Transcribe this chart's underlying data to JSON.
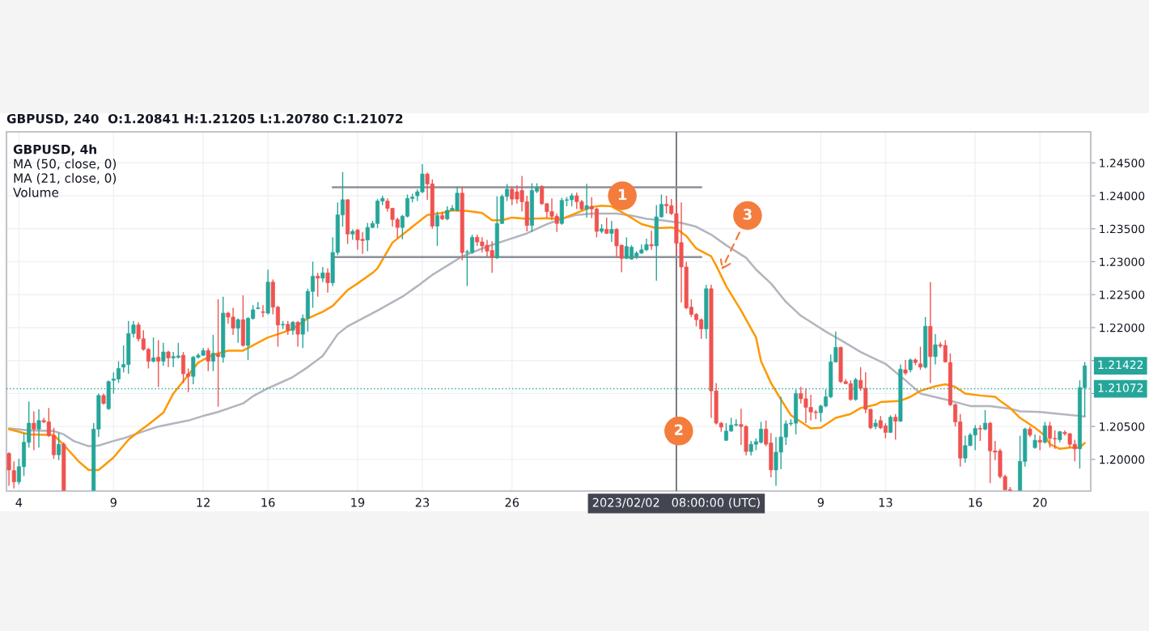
{
  "chart_data": {
    "type": "candlestick",
    "title": "GBPUSD, 240  O:1.20841 H:1.21205 L:1.20780 C:1.21072",
    "annotations": [
      "GBPUSD, 4h",
      "MA (50, close, 0)",
      "MA (21, close, 0)",
      "Volume",
      "1",
      "2",
      "3",
      "1.21422"
    ],
    "categories": [
      null,
      null,
      "4",
      null,
      null,
      null,
      null,
      null,
      null,
      null,
      null,
      null,
      null,
      null,
      null,
      null,
      null,
      null,
      null,
      null,
      null,
      "9",
      null,
      null,
      null,
      null,
      null,
      null,
      null,
      null,
      null,
      null,
      null,
      null,
      null,
      null,
      null,
      null,
      null,
      "12",
      null,
      null,
      null,
      null,
      null,
      null,
      null,
      null,
      null,
      null,
      null,
      null,
      "16",
      null,
      null,
      null,
      null,
      null,
      null,
      null,
      null,
      null,
      null,
      null,
      null,
      null,
      null,
      null,
      null,
      null,
      "19",
      null,
      null,
      null,
      null,
      null,
      null,
      null,
      null,
      null,
      null,
      null,
      null,
      "23",
      null,
      null,
      null,
      null,
      null,
      null,
      null,
      null,
      null,
      null,
      null,
      null,
      null,
      null,
      null,
      null,
      null,
      "26",
      null,
      null,
      null,
      null,
      null,
      null,
      null,
      null,
      null,
      null,
      null,
      null,
      null,
      null,
      null,
      null,
      null,
      null,
      null,
      null,
      null,
      null,
      null,
      null,
      null,
      null,
      null,
      null,
      null,
      null,
      null,
      null,
      "2023/02/02   08:00:00 (UTC)",
      null,
      null,
      null,
      null,
      null,
      null,
      null,
      null,
      null,
      null,
      null,
      null,
      null,
      null,
      null,
      null,
      null,
      null,
      null,
      null,
      null,
      null,
      null,
      null,
      null,
      null,
      null,
      null,
      "9",
      null,
      null,
      null,
      null,
      null,
      null,
      null,
      null,
      null,
      null,
      null,
      null,
      "13",
      null,
      null,
      null,
      null,
      null,
      null,
      null,
      null,
      null,
      null,
      null,
      null,
      null,
      null,
      null,
      null,
      null,
      "16",
      null,
      null,
      null,
      null,
      null,
      null,
      null,
      null,
      null,
      null,
      null,
      null,
      "20",
      null,
      null,
      null,
      null,
      null,
      null,
      null,
      null,
      null
    ],
    "ohlc": [
      [
        1.2009,
        1.2011,
        1.196,
        1.1984
      ],
      [
        1.1983,
        1.1997,
        1.1956,
        1.1966
      ],
      [
        1.1966,
        1.2001,
        1.1962,
        1.1989
      ],
      [
        1.1989,
        1.204,
        1.1975,
        1.2026
      ],
      [
        1.2026,
        1.2088,
        1.2018,
        1.2055
      ],
      [
        1.2055,
        1.2073,
        1.2014,
        1.2046
      ],
      [
        1.2046,
        1.2076,
        1.2018,
        1.2059
      ],
      [
        1.2059,
        1.2063,
        1.2055,
        1.2057
      ],
      [
        1.2057,
        1.2078,
        1.2034,
        1.2036
      ],
      [
        1.2036,
        1.2048,
        1.2001,
        1.2007
      ],
      [
        1.2007,
        1.204,
        1.1999,
        1.2023
      ],
      [
        1.2023,
        1.2026,
        1.1953,
        1.1953
      ],
      null,
      null,
      null,
      null,
      null,
      [
        1.1953,
        1.2055,
        1.1953,
        1.2046
      ],
      [
        1.2046,
        1.21,
        1.2034,
        1.2097
      ],
      [
        1.2097,
        1.21,
        1.2083,
        1.2085
      ],
      [
        1.2077,
        1.212,
        1.2075,
        1.2118
      ],
      [
        1.212,
        1.2132,
        1.21,
        1.2122
      ],
      [
        1.2122,
        1.2149,
        1.2116,
        1.2138
      ],
      [
        1.214,
        1.2173,
        1.2132,
        1.2144
      ],
      [
        1.2144,
        1.221,
        1.213,
        1.2191
      ],
      [
        1.2191,
        1.221,
        1.2185,
        1.2204
      ],
      [
        1.2204,
        1.2208,
        1.2179,
        1.2183
      ],
      [
        1.2183,
        1.2196,
        1.2165,
        1.2167
      ],
      [
        1.2167,
        1.2169,
        1.2138,
        1.2149
      ],
      [
        1.2149,
        1.2185,
        1.2147,
        1.2154
      ],
      [
        1.2155,
        1.2181,
        1.211,
        1.2149
      ],
      [
        1.2149,
        1.2177,
        1.2142,
        1.2163
      ],
      [
        1.2163,
        1.2165,
        1.214,
        1.2154
      ],
      [
        1.2154,
        1.2163,
        1.214,
        1.2156
      ],
      [
        1.2155,
        1.2177,
        1.2153,
        1.2157
      ],
      [
        1.2158,
        1.2163,
        1.2116,
        1.213
      ],
      [
        1.213,
        1.2138,
        1.2102,
        1.2126
      ],
      [
        1.2126,
        1.2157,
        1.2114,
        1.2155
      ],
      [
        1.2155,
        1.2161,
        1.2153,
        1.2158
      ],
      [
        1.2158,
        1.2169,
        1.2157,
        1.2165
      ],
      [
        1.2165,
        1.2169,
        1.2134,
        1.2149
      ],
      [
        1.2149,
        1.2189,
        1.2134,
        1.2161
      ],
      [
        1.216,
        1.2243,
        1.208,
        1.2156
      ],
      [
        1.2155,
        1.2247,
        1.2147,
        1.2222
      ],
      [
        1.2222,
        1.2224,
        1.2206,
        1.2216
      ],
      [
        1.2216,
        1.223,
        1.2189,
        1.2199
      ],
      [
        1.2199,
        1.2214,
        1.2177,
        1.2212
      ],
      [
        1.2212,
        1.2249,
        1.2171,
        1.2173
      ],
      [
        1.2173,
        1.2216,
        1.2151,
        1.2214
      ],
      [
        1.2214,
        1.2234,
        1.2212,
        1.2227
      ],
      [
        1.2229,
        1.2239,
        1.2228,
        1.223
      ],
      [
        1.2224,
        1.2234,
        1.2216,
        1.2223
      ],
      [
        1.2222,
        1.2288,
        1.222,
        1.2269
      ],
      [
        1.2269,
        1.2273,
        1.222,
        1.2231
      ],
      [
        1.2231,
        1.2233,
        1.2171,
        1.2204
      ],
      [
        1.2204,
        1.221,
        1.2198,
        1.2205
      ],
      [
        1.2205,
        1.221,
        1.2189,
        1.2196
      ],
      [
        1.2196,
        1.221,
        1.2189,
        1.2208
      ],
      [
        1.2208,
        1.221,
        1.2171,
        1.219
      ],
      [
        1.219,
        1.222,
        1.2169,
        1.2214
      ],
      [
        1.2214,
        1.2259,
        1.2194,
        1.2255
      ],
      [
        1.2255,
        1.23,
        1.223,
        1.2278
      ],
      [
        1.2278,
        1.2283,
        1.2247,
        1.2275
      ],
      [
        1.2275,
        1.2292,
        1.2269,
        1.2283
      ],
      [
        1.2283,
        1.229,
        1.2253,
        1.2268
      ],
      [
        1.2268,
        1.2337,
        1.2263,
        1.2314
      ],
      [
        1.2314,
        1.239,
        1.231,
        1.2371
      ],
      [
        1.2371,
        1.2436,
        1.2353,
        1.2394
      ],
      [
        1.2394,
        1.2395,
        1.2327,
        1.2342
      ],
      [
        1.2342,
        1.2349,
        1.2333,
        1.2346
      ],
      [
        1.2348,
        1.235,
        1.2318,
        1.2333
      ],
      [
        1.2334,
        1.2345,
        1.2312,
        1.2332
      ],
      [
        1.2333,
        1.2359,
        1.2316,
        1.2352
      ],
      [
        1.2352,
        1.2362,
        1.2351,
        1.2358
      ],
      [
        1.2358,
        1.2395,
        1.2351,
        1.2392
      ],
      [
        1.2392,
        1.24,
        1.2386,
        1.2396
      ],
      [
        1.2392,
        1.2396,
        1.2376,
        1.2381
      ],
      [
        1.2381,
        1.2382,
        1.2353,
        1.2364
      ],
      [
        1.2364,
        1.2367,
        1.2336,
        1.2352
      ],
      [
        1.2352,
        1.2371,
        1.2334,
        1.2369
      ],
      [
        1.2369,
        1.2402,
        1.2367,
        1.2396
      ],
      [
        1.2396,
        1.2403,
        1.239,
        1.2398
      ],
      [
        1.24,
        1.241,
        1.2392,
        1.2406
      ],
      [
        1.2406,
        1.2448,
        1.2404,
        1.2433
      ],
      [
        1.2433,
        1.2435,
        1.2394,
        1.2418
      ],
      [
        1.2418,
        1.2425,
        1.235,
        1.2354
      ],
      [
        1.2354,
        1.2376,
        1.2324,
        1.237
      ],
      [
        1.237,
        1.2376,
        1.2363,
        1.2365
      ],
      [
        1.2365,
        1.2384,
        1.2363,
        1.2378
      ],
      [
        1.2378,
        1.2386,
        1.2377,
        1.2381
      ],
      [
        1.2378,
        1.2414,
        1.2376,
        1.2404
      ],
      [
        1.2404,
        1.2414,
        1.2302,
        1.2314
      ],
      [
        1.2314,
        1.2318,
        1.2263,
        1.2315
      ],
      [
        1.2314,
        1.2341,
        1.2312,
        1.2337
      ],
      [
        1.2337,
        1.2341,
        1.2324,
        1.233
      ],
      [
        1.233,
        1.2337,
        1.2314,
        1.2324
      ],
      [
        1.2325,
        1.2333,
        1.2308,
        1.2316
      ],
      [
        1.2317,
        1.2331,
        1.2283,
        1.2306
      ],
      [
        1.2306,
        1.2399,
        1.2304,
        1.2358
      ],
      [
        1.2358,
        1.2402,
        1.2357,
        1.2399
      ],
      [
        1.2399,
        1.2418,
        1.2392,
        1.241
      ],
      [
        1.241,
        1.2414,
        1.2386,
        1.2395
      ],
      [
        1.2406,
        1.2416,
        1.2388,
        1.2395
      ],
      [
        1.2408,
        1.243,
        1.2376,
        1.2391
      ],
      [
        1.2391,
        1.24,
        1.2346,
        1.2355
      ],
      [
        1.2355,
        1.2419,
        1.2345,
        1.2408
      ],
      [
        1.2407,
        1.2419,
        1.2404,
        1.2413
      ],
      [
        1.2414,
        1.2416,
        1.2386,
        1.2388
      ],
      [
        1.2388,
        1.2389,
        1.2367,
        1.2376
      ],
      [
        1.2376,
        1.2396,
        1.2363,
        1.2369
      ],
      [
        1.2369,
        1.2373,
        1.2345,
        1.2358
      ],
      [
        1.2358,
        1.2397,
        1.2356,
        1.2393
      ],
      [
        1.2393,
        1.2398,
        1.2384,
        1.2394
      ],
      [
        1.2394,
        1.2404,
        1.2384,
        1.24
      ],
      [
        1.24,
        1.2405,
        1.238,
        1.2391
      ],
      [
        1.2391,
        1.2394,
        1.2378,
        1.238
      ],
      [
        1.238,
        1.2418,
        1.2367,
        1.2385
      ],
      [
        1.2384,
        1.2398,
        1.2366,
        1.238
      ],
      [
        1.238,
        1.2382,
        1.2337,
        1.2346
      ],
      [
        1.2346,
        1.2357,
        1.2343,
        1.235
      ],
      [
        1.2349,
        1.2367,
        1.2342,
        1.2343
      ],
      [
        1.2343,
        1.2362,
        1.233,
        1.2349
      ],
      [
        1.2349,
        1.2351,
        1.2306,
        1.2324
      ],
      [
        1.2325,
        1.2326,
        1.2284,
        1.2305
      ],
      [
        1.2305,
        1.2337,
        1.2304,
        1.2323
      ],
      [
        1.2304,
        1.2325,
        1.2303,
        1.2322
      ],
      [
        1.2308,
        1.2316,
        1.2304,
        1.2313
      ],
      [
        1.2313,
        1.2326,
        1.2312,
        1.2318
      ],
      [
        1.2318,
        1.2335,
        1.2316,
        1.2326
      ],
      [
        1.2326,
        1.2347,
        1.2318,
        1.2324
      ],
      [
        1.2324,
        1.2386,
        1.2271,
        1.2368
      ],
      [
        1.2368,
        1.2402,
        1.2367,
        1.2387
      ],
      [
        1.2387,
        1.24,
        1.2373,
        1.2385
      ],
      [
        1.2385,
        1.2395,
        1.2371,
        1.2373
      ],
      [
        1.2373,
        1.2393,
        1.231,
        1.2328
      ],
      [
        1.2329,
        1.239,
        1.2238,
        1.2292
      ],
      [
        1.2292,
        1.23,
        1.2228,
        1.223
      ],
      [
        1.2231,
        1.2243,
        1.2216,
        1.222
      ],
      [
        1.222,
        1.2222,
        1.2202,
        1.2212
      ],
      [
        1.2212,
        1.2214,
        1.2183,
        1.2198
      ],
      [
        1.2198,
        1.2265,
        1.2183,
        1.2259
      ],
      [
        1.2259,
        1.2265,
        1.2063,
        1.2104
      ],
      [
        1.2104,
        1.2116,
        1.2053,
        1.2055
      ],
      [
        1.2055,
        1.2057,
        1.2042,
        1.2049
      ],
      [
        1.2029,
        1.2055,
        1.2028,
        1.2043
      ],
      [
        1.2043,
        1.2063,
        1.2042,
        1.2052
      ],
      [
        1.2052,
        1.2061,
        1.205,
        1.2053
      ],
      [
        1.2053,
        1.2077,
        1.2022,
        1.205
      ],
      [
        1.205,
        1.2052,
        1.2006,
        1.2012
      ],
      [
        1.2012,
        1.2028,
        1.2006,
        1.2023
      ],
      [
        1.2023,
        1.2032,
        1.2014,
        1.2027
      ],
      [
        1.2026,
        1.2057,
        1.2024,
        1.2046
      ],
      [
        1.2046,
        1.2059,
        1.202,
        1.2023
      ],
      [
        1.2025,
        1.204,
        1.1973,
        1.1984
      ],
      [
        1.1984,
        1.2034,
        1.196,
        1.2011
      ],
      [
        1.2011,
        1.2095,
        1.1985,
        1.2034
      ],
      [
        1.2034,
        1.2059,
        1.2022,
        1.2054
      ],
      [
        1.2054,
        1.2061,
        1.2051,
        1.2055
      ],
      [
        1.2055,
        1.2106,
        1.2038,
        1.21
      ],
      [
        1.21,
        1.211,
        1.2085,
        1.2092
      ],
      [
        1.2092,
        1.2108,
        1.2055,
        1.2079
      ],
      [
        1.2079,
        1.2098,
        1.2059,
        1.2072
      ],
      [
        1.2072,
        1.2075,
        1.2061,
        1.2071
      ],
      [
        1.2071,
        1.2083,
        1.2057,
        1.2081
      ],
      [
        1.2081,
        1.2106,
        1.2079,
        1.2095
      ],
      [
        1.2095,
        1.2159,
        1.2093,
        1.2148
      ],
      [
        1.2148,
        1.2194,
        1.2147,
        1.217
      ],
      [
        1.217,
        1.2171,
        1.2116,
        1.2118
      ],
      [
        1.2118,
        1.2122,
        1.2114,
        1.2115
      ],
      [
        1.2115,
        1.212,
        1.2089,
        1.2091
      ],
      [
        1.2091,
        1.2124,
        1.2089,
        1.2121
      ],
      [
        1.212,
        1.214,
        1.2104,
        1.2108
      ],
      [
        1.2108,
        1.2132,
        1.207,
        1.2076
      ],
      [
        1.2076,
        1.2077,
        1.2046,
        1.2048
      ],
      [
        1.205,
        1.2061,
        1.2046,
        1.2055
      ],
      [
        1.2059,
        1.2066,
        1.2046,
        1.2048
      ],
      [
        1.2051,
        1.2055,
        1.2032,
        1.2041
      ],
      [
        1.2041,
        1.2067,
        1.204,
        1.2064
      ],
      [
        1.2064,
        1.2069,
        1.203,
        1.2058
      ],
      [
        1.2058,
        1.2144,
        1.2057,
        1.2137
      ],
      [
        1.2136,
        1.2151,
        1.2128,
        1.2131
      ],
      [
        1.2136,
        1.2153,
        1.2132,
        1.2151
      ],
      [
        1.2151,
        1.2153,
        1.2143,
        1.2147
      ],
      [
        1.2145,
        1.2171,
        1.2136,
        1.214
      ],
      [
        1.214,
        1.2216,
        1.2138,
        1.2202
      ],
      [
        1.2202,
        1.2269,
        1.2116,
        1.2156
      ],
      [
        1.2156,
        1.219,
        1.2144,
        1.2174
      ],
      [
        1.2174,
        1.2178,
        1.2169,
        1.2172
      ],
      [
        1.2173,
        1.2181,
        1.2147,
        1.2148
      ],
      [
        1.2147,
        1.2161,
        1.2081,
        1.2083
      ],
      [
        1.2083,
        1.2085,
        1.205,
        1.2057
      ],
      [
        1.2057,
        1.2069,
        1.1989,
        1.2002
      ],
      [
        1.2002,
        1.2036,
        1.1995,
        1.2021
      ],
      [
        1.2021,
        1.204,
        1.202,
        1.2037
      ],
      [
        1.2037,
        1.2052,
        1.2014,
        1.2047
      ],
      [
        1.2047,
        1.2052,
        1.2028,
        1.2046
      ],
      [
        1.2046,
        1.2075,
        1.2044,
        1.2055
      ],
      [
        1.2055,
        1.2057,
        1.1964,
        1.2013
      ],
      [
        1.2013,
        1.2028,
        1.1999,
        1.2011
      ],
      [
        1.2013,
        1.2016,
        1.1971,
        1.1974
      ],
      [
        1.1974,
        1.1977,
        1.1953,
        1.1954
      ],
      [
        1.1954,
        1.1958,
        1.1953,
        1.1953
      ],
      null,
      [
        1.1953,
        1.2036,
        1.1953,
        1.1997
      ],
      [
        1.1997,
        1.2048,
        1.1989,
        1.2046
      ],
      [
        1.2046,
        1.205,
        1.2034,
        1.2037
      ],
      [
        1.2018,
        1.2038,
        1.2016,
        1.2029
      ],
      [
        1.2029,
        1.2036,
        1.2014,
        1.2026
      ],
      [
        1.2026,
        1.2057,
        1.2024,
        1.2051
      ],
      [
        1.2051,
        1.2057,
        1.2018,
        1.2032
      ],
      [
        1.2032,
        1.2044,
        1.2016,
        1.2031
      ],
      [
        1.203,
        1.2043,
        1.2026,
        1.2042
      ],
      [
        1.2041,
        1.2044,
        1.2036,
        1.2039
      ],
      [
        1.2039,
        1.204,
        1.2018,
        1.2023
      ],
      [
        1.2023,
        1.203,
        1.1997,
        1.2016
      ],
      [
        1.2016,
        1.212,
        1.1986,
        1.2109
      ],
      [
        1.2109,
        1.2148,
        1.2065,
        1.2142
      ]
    ],
    "colors": [
      "#ef5350",
      "#ef5350",
      "#26a69a",
      "#26a69a",
      "#26a69a",
      "#ef5350",
      "#26a69a",
      "#ef5350",
      "#ef5350",
      "#ef5350",
      "#26a69a",
      "#ef5350",
      null,
      null,
      null,
      null,
      null,
      "#26a69a",
      "#26a69a",
      "#ef5350",
      "#26a69a",
      "#26a69a",
      "#26a69a",
      "#26a69a",
      "#26a69a",
      "#26a69a",
      "#ef5350",
      "#ef5350",
      "#ef5350",
      "#26a69a",
      "#ef5350",
      "#26a69a",
      "#ef5350",
      "#26a69a",
      "#26a69a",
      "#ef5350",
      "#ef5350",
      "#26a69a",
      "#26a69a",
      "#26a69a",
      "#ef5350",
      "#26a69a",
      "#ef5350",
      "#26a69a",
      "#ef5350",
      "#ef5350",
      "#26a69a",
      "#ef5350",
      "#26a69a",
      "#26a69a",
      "#26a69a",
      "#ef5350",
      "#26a69a",
      "#ef5350",
      "#ef5350",
      "#26a69a",
      "#ef5350",
      "#26a69a",
      "#ef5350",
      "#26a69a",
      "#26a69a",
      "#26a69a",
      "#ef5350",
      "#26a69a",
      "#ef5350",
      "#26a69a",
      "#26a69a",
      "#26a69a",
      "#ef5350",
      "#26a69a",
      "#ef5350",
      "#ef5350",
      "#26a69a",
      "#26a69a",
      "#26a69a",
      "#26a69a",
      "#ef5350",
      "#ef5350",
      "#ef5350",
      "#26a69a",
      "#26a69a",
      "#26a69a",
      "#26a69a",
      "#26a69a",
      "#ef5350",
      "#ef5350",
      "#26a69a",
      "#ef5350",
      "#26a69a",
      "#26a69a",
      "#26a69a",
      "#ef5350",
      "#26a69a",
      "#26a69a",
      "#ef5350",
      "#ef5350",
      "#ef5350",
      "#ef5350",
      "#26a69a",
      "#26a69a",
      "#26a69a",
      "#ef5350",
      "#ef5350",
      "#ef5350",
      "#ef5350",
      "#26a69a",
      "#26a69a",
      "#ef5350",
      "#ef5350",
      "#ef5350",
      "#ef5350",
      "#26a69a",
      "#26a69a",
      "#26a69a",
      "#ef5350",
      "#ef5350",
      "#26a69a",
      "#ef5350",
      "#ef5350",
      "#26a69a",
      "#ef5350",
      "#26a69a",
      "#ef5350",
      "#ef5350",
      "#26a69a",
      "#26a69a",
      "#26a69a",
      "#26a69a",
      "#26a69a",
      "#ef5350",
      "#26a69a",
      "#26a69a",
      "#ef5350",
      "#ef5350",
      "#ef5350",
      "#ef5350",
      "#ef5350",
      "#ef5350",
      "#ef5350",
      "#ef5350",
      "#26a69a",
      "#ef5350",
      "#ef5350",
      "#ef5350",
      "#26a69a",
      "#26a69a",
      "#26a69a",
      "#ef5350",
      "#ef5350",
      "#26a69a",
      "#26a69a",
      "#26a69a",
      "#ef5350",
      "#ef5350",
      "#26a69a",
      "#26a69a",
      "#26a69a",
      "#26a69a",
      "#26a69a",
      "#ef5350",
      "#ef5350",
      "#ef5350",
      "#ef5350",
      "#26a69a",
      "#26a69a",
      "#26a69a",
      "#26a69a",
      "#ef5350",
      "#ef5350",
      "#ef5350",
      "#26a69a",
      "#ef5350",
      "#ef5350",
      "#ef5350",
      "#26a69a",
      "#ef5350",
      "#ef5350",
      "#26a69a",
      "#ef5350",
      "#26a69a",
      "#ef5350",
      "#26a69a",
      "#ef5350",
      "#ef5350",
      "#26a69a",
      "#ef5350",
      "#26a69a",
      "#ef5350",
      "#ef5350",
      "#ef5350",
      "#ef5350",
      "#ef5350",
      "#26a69a",
      "#26a69a",
      "#26a69a",
      "#ef5350",
      "#26a69a",
      "#ef5350",
      "#ef5350",
      "#ef5350",
      "#ef5350",
      "#ef5350",
      null,
      "#26a69a",
      "#26a69a",
      "#ef5350",
      "#26a69a",
      "#ef5350",
      "#26a69a",
      "#ef5350",
      "#ef5350",
      "#26a69a",
      "#ef5350",
      "#ef5350",
      "#ef5350",
      "#26a69a",
      "#26a69a"
    ],
    "series": [
      {
        "type": "line",
        "color": "#b2b5be",
        "values": [
          1.2047,
          null,
          null,
          null,
          1.2044,
          null,
          null,
          null,
          null,
          1.2043,
          null,
          1.2038,
          null,
          1.2028,
          null,
          null,
          1.202,
          null,
          1.2021,
          null,
          null,
          1.2028,
          null,
          1.2032,
          null,
          null,
          1.204,
          null,
          null,
          null,
          1.205,
          null,
          null,
          null,
          null,
          null,
          1.2059,
          null,
          null,
          1.2066,
          null,
          null,
          1.2072,
          null,
          null,
          null,
          null,
          1.2085,
          null,
          1.2096,
          null,
          null,
          1.2108,
          null,
          null,
          1.2118,
          null,
          1.2125,
          null,
          null,
          1.214,
          null,
          null,
          1.2157,
          null,
          null,
          1.219,
          null,
          1.2202,
          null,
          null,
          1.2214,
          null,
          null,
          1.2226,
          null,
          null,
          null,
          null,
          1.2247,
          null,
          null,
          1.2263,
          null,
          null,
          1.228,
          null,
          null,
          1.2294,
          null,
          null,
          1.2308,
          null,
          null,
          null,
          null,
          1.2323,
          null,
          null,
          null,
          1.2333,
          null,
          null,
          null,
          1.2343,
          null,
          null,
          null,
          1.2357,
          null,
          null,
          1.2365,
          null,
          null,
          1.2371,
          null,
          null,
          1.2373,
          null,
          null,
          null,
          null,
          1.2373,
          null,
          null,
          1.237,
          null,
          null,
          1.2365,
          null,
          null,
          1.2363,
          null,
          null,
          null,
          1.2359,
          null,
          null,
          1.2353,
          null,
          null,
          1.2341,
          null,
          null,
          1.2325,
          null,
          null,
          null,
          1.2306,
          null,
          1.2288,
          null,
          null,
          1.2267,
          null,
          null,
          1.2239,
          null,
          null,
          1.2218,
          null,
          null,
          null,
          null,
          1.2194,
          null,
          null,
          1.2181,
          null,
          null,
          null,
          1.2163,
          null,
          null,
          null,
          null,
          1.2145,
          null,
          null,
          null,
          1.212,
          null,
          null,
          1.21,
          null,
          null,
          null,
          null,
          1.2091,
          null,
          null,
          1.2085,
          null,
          1.2081,
          null,
          null,
          null,
          1.2081,
          null,
          null,
          null,
          1.2077,
          null,
          1.2073,
          null,
          null,
          null,
          1.2072,
          null,
          null,
          null,
          1.2069,
          null,
          null,
          null,
          1.2066,
          1.2065
        ]
      },
      {
        "type": "line",
        "color": "#ff9800",
        "values": [
          1.2046,
          null,
          null,
          null,
          1.2038,
          null,
          null,
          null,
          null,
          1.2037,
          null,
          1.2022,
          null,
          null,
          1.1997,
          null,
          1.1984,
          null,
          1.1984,
          null,
          null,
          1.2003,
          null,
          null,
          1.203,
          null,
          1.2042,
          null,
          1.2053,
          null,
          null,
          1.2071,
          null,
          1.21,
          null,
          null,
          1.2128,
          null,
          1.2147,
          null,
          null,
          1.2159,
          null,
          null,
          1.2165,
          null,
          null,
          1.2165,
          null,
          null,
          null,
          null,
          1.2185,
          null,
          1.219,
          null,
          null,
          1.2198,
          null,
          null,
          1.2214,
          null,
          null,
          1.2224,
          null,
          1.2233,
          null,
          null,
          1.2257,
          null,
          1.2267,
          null,
          null,
          1.2283,
          1.229,
          null,
          null,
          1.2329,
          null,
          null,
          null,
          1.2353,
          null,
          null,
          1.2371,
          null,
          null,
          1.2374,
          null,
          1.2378,
          null,
          null,
          1.2377,
          null,
          null,
          1.2374,
          null,
          1.2363,
          null,
          1.2363,
          null,
          1.2367,
          null,
          null,
          1.2365,
          null,
          null,
          null,
          1.2366,
          null,
          null,
          1.2365,
          null,
          null,
          1.2374,
          null,
          null,
          1.2383,
          null,
          1.2385,
          null,
          1.2384,
          null,
          null,
          1.2371,
          null,
          null,
          1.2357,
          null,
          null,
          1.2351,
          null,
          null,
          1.2352,
          1.235,
          null,
          1.2339,
          null,
          1.232,
          null,
          null,
          1.2308,
          1.2294,
          null,
          1.2263,
          null,
          null,
          1.2226,
          null,
          null,
          1.2185,
          1.2149,
          null,
          1.2116,
          null,
          1.2091,
          null,
          1.2067,
          null,
          null,
          1.2052,
          1.2047,
          null,
          1.2048,
          null,
          null,
          1.2063,
          null,
          null,
          1.2069,
          null,
          1.2078,
          null,
          null,
          1.2083,
          1.2087,
          null,
          null,
          null,
          1.2089,
          null,
          1.2095,
          null,
          1.2104,
          null,
          null,
          1.2111,
          null,
          1.2114,
          null,
          1.211,
          null,
          1.21,
          null,
          null,
          1.2097,
          null,
          null,
          1.2095,
          1.2089,
          null,
          1.2078,
          null,
          1.2063,
          null,
          null,
          1.2048,
          null,
          1.2036,
          1.2023,
          null,
          1.2016,
          null,
          1.2018,
          null,
          1.2018,
          1.2025
        ]
      },
      {
        "type": "line",
        "color": "#8d9099",
        "values": [
          null,
          null,
          null,
          null,
          null,
          null,
          null,
          null,
          null,
          null,
          null,
          null,
          null,
          null,
          null,
          null,
          null,
          null,
          null,
          null,
          null,
          null,
          null,
          null,
          null,
          null,
          null,
          null,
          null,
          null,
          null,
          null,
          null,
          null,
          null,
          null,
          null,
          null,
          null,
          null,
          null,
          null,
          null,
          null,
          null,
          null,
          null,
          null,
          null,
          null,
          null,
          null,
          null,
          null,
          null,
          null,
          null,
          null,
          null,
          null,
          null,
          null,
          null,
          null,
          null,
          1.2413,
          null,
          null,
          null,
          null,
          null,
          null,
          null,
          null,
          null,
          null,
          null,
          null,
          null,
          null,
          null,
          null,
          null,
          null,
          null,
          null,
          null,
          null,
          null,
          null,
          null,
          null,
          null,
          null,
          null,
          null,
          null,
          null,
          null,
          null,
          null,
          null,
          null,
          null,
          null,
          null,
          null,
          null,
          null,
          null,
          null,
          null,
          null,
          null,
          null,
          null,
          null,
          null,
          null,
          null,
          null,
          null,
          null,
          null,
          null,
          null,
          null,
          null,
          null,
          null,
          null,
          null,
          null,
          null,
          null,
          null,
          null,
          null,
          null,
          1.2413,
          null,
          null,
          null,
          null,
          null,
          null,
          null,
          null,
          null,
          null,
          null,
          null,
          null,
          null,
          null,
          null,
          null,
          null,
          null,
          null,
          null,
          null,
          null,
          null,
          null,
          null,
          null,
          null,
          null,
          null,
          null,
          null,
          null,
          null,
          null,
          null,
          null,
          null,
          null,
          null,
          null,
          null,
          null,
          null,
          null,
          null,
          null,
          null,
          null,
          null,
          null,
          null,
          null,
          null,
          null,
          null,
          null,
          null,
          null,
          null,
          null,
          null,
          null,
          null,
          null,
          null,
          null,
          null,
          null,
          null,
          null,
          null,
          null,
          null,
          null,
          null,
          null
        ]
      },
      {
        "type": "line",
        "color": "#8d9099",
        "values": [
          null,
          null,
          null,
          null,
          null,
          null,
          null,
          null,
          null,
          null,
          null,
          null,
          null,
          null,
          null,
          null,
          null,
          null,
          null,
          null,
          null,
          null,
          null,
          null,
          null,
          null,
          null,
          null,
          null,
          null,
          null,
          null,
          null,
          null,
          null,
          null,
          null,
          null,
          null,
          null,
          null,
          null,
          null,
          null,
          null,
          null,
          null,
          null,
          null,
          null,
          null,
          null,
          null,
          null,
          null,
          null,
          null,
          null,
          null,
          null,
          null,
          null,
          null,
          null,
          null,
          1.2307,
          null,
          null,
          null,
          null,
          null,
          null,
          null,
          null,
          null,
          null,
          null,
          null,
          null,
          null,
          null,
          null,
          null,
          null,
          null,
          null,
          null,
          null,
          null,
          null,
          null,
          null,
          null,
          null,
          null,
          null,
          null,
          null,
          null,
          null,
          null,
          null,
          null,
          null,
          null,
          null,
          null,
          null,
          null,
          null,
          null,
          null,
          null,
          null,
          null,
          null,
          null,
          null,
          null,
          null,
          null,
          null,
          null,
          null,
          null,
          null,
          null,
          null,
          null,
          null,
          null,
          null,
          null,
          null,
          null,
          null,
          null,
          null,
          null,
          1.2307,
          null,
          null,
          null,
          null,
          null,
          null,
          null,
          null,
          null,
          null,
          null,
          null,
          null,
          null,
          null,
          null,
          null,
          null,
          null,
          null,
          null,
          null,
          null,
          null,
          null,
          null,
          null,
          null,
          null,
          null,
          null,
          null,
          null,
          null,
          null,
          null,
          null,
          null,
          null,
          null,
          null,
          null,
          null,
          null,
          null,
          null,
          null,
          null,
          null,
          null,
          null,
          null,
          null,
          null,
          null,
          null,
          null,
          null,
          null,
          null,
          null,
          null,
          null,
          null,
          null,
          null,
          null,
          null,
          null,
          null,
          null,
          null,
          null,
          null,
          null,
          null,
          null
        ]
      }
    ],
    "ylim": [
      1.1952,
      1.2497
    ],
    "yticks": [
      {
        "value": 1.2,
        "label": "1.20000"
      },
      {
        "value": 1.205,
        "label": "1.20500"
      },
      {
        "value": 1.21,
        "label": null
      },
      {
        "value": 1.215,
        "label": null
      },
      {
        "value": 1.22,
        "label": "1.22000"
      },
      {
        "value": 1.225,
        "label": "1.22500"
      },
      {
        "value": 1.23,
        "label": "1.23000"
      },
      {
        "value": 1.235,
        "label": "1.23500"
      },
      {
        "value": 1.24,
        "label": "1.24000"
      },
      {
        "value": 1.245,
        "label": "1.24500"
      }
    ],
    "grid": true,
    "ref_lines": [
      {
        "axis": "x",
        "value": "2023/02/02   08:00:00 (UTC)",
        "color": "#434651",
        "line_style": "solid"
      },
      {
        "axis": "y",
        "value": 1.21072,
        "label": "1.21072",
        "color": "#26a69a",
        "line_style": "dotted"
      }
    ]
  }
}
